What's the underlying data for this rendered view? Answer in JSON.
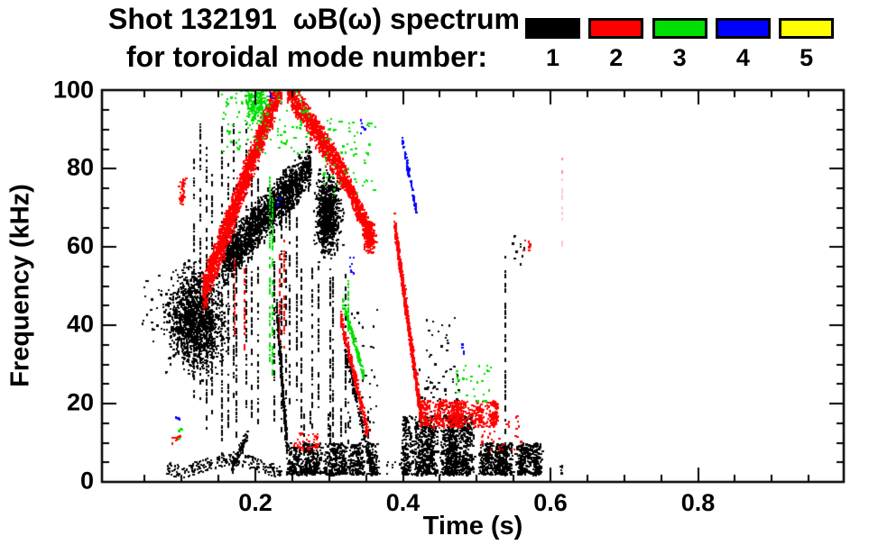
{
  "header": {
    "title_line1": "Shot 132191  ωB(ω) spectrum",
    "title_line2": "for toroidal mode number:"
  },
  "legend": {
    "modes": [
      {
        "label": "1",
        "color": "#000000"
      },
      {
        "label": "2",
        "color": "#ff0000"
      },
      {
        "label": "3",
        "color": "#00e000"
      },
      {
        "label": "4",
        "color": "#0000ff"
      },
      {
        "label": "5",
        "color": "#ffff00"
      }
    ]
  },
  "chart_data": {
    "type": "scatter",
    "title": "Shot 132191 ωB(ω) spectrum for toroidal mode number: 1 2 3 4 5",
    "xlabel": "Time (s)",
    "ylabel": "Frequency (kHz)",
    "xlim": [
      0,
      1.0
    ],
    "ylim": [
      0,
      100
    ],
    "xticks": [
      {
        "t": 0.2,
        "label": "0.2"
      },
      {
        "t": 0.4,
        "label": "0.4"
      },
      {
        "t": 0.6,
        "label": "0.6"
      },
      {
        "t": 0.8,
        "label": "0.8"
      }
    ],
    "yticks": [
      {
        "f": 0,
        "label": "0"
      },
      {
        "f": 20,
        "label": "20"
      },
      {
        "f": 40,
        "label": "40"
      },
      {
        "f": 60,
        "label": "60"
      },
      {
        "f": 80,
        "label": "80"
      },
      {
        "f": 100,
        "label": "100"
      }
    ],
    "x_minor_step": 0.05,
    "y_minor_step": 5,
    "grid": false,
    "legend_position": "top-right",
    "series": [
      {
        "name": "n=1",
        "color": "#000000",
        "clusters": [
          {
            "shape": "blob",
            "t": [
              0.075,
              0.162
            ],
            "f": [
              27,
              55
            ],
            "n": 1400
          },
          {
            "shape": "dots",
            "t": [
              0.045,
              0.078
            ],
            "f": [
              36,
              54
            ],
            "n": 20
          },
          {
            "shape": "vstreaks",
            "t": [
              0.115,
              0.205
            ],
            "f": [
              10,
              93
            ],
            "k": 11
          },
          {
            "shape": "vstreaks",
            "t": [
              0.222,
              0.258
            ],
            "f": [
              12,
              82
            ],
            "k": 5
          },
          {
            "shape": "diag",
            "t": [
              0.155,
              0.275
            ],
            "f": [
              56,
              81
            ],
            "th": 11,
            "n": 1700
          },
          {
            "shape": "blob",
            "t": [
              0.278,
              0.317
            ],
            "f": [
              57,
              80
            ],
            "n": 900
          },
          {
            "shape": "hline",
            "t": [
              0.08,
              0.235
            ],
            "f": [
              2,
              7
            ],
            "n": 260
          },
          {
            "shape": "diag",
            "t": [
              0.166,
              0.19
            ],
            "f": [
              3,
              13
            ],
            "th": 3,
            "n": 90
          },
          {
            "shape": "diag",
            "t": [
              0.228,
              0.242
            ],
            "f": [
              45,
              10
            ],
            "th": 6,
            "n": 320
          },
          {
            "shape": "hband",
            "t": [
              0.24,
              0.365
            ],
            "f": [
              2,
              10
            ],
            "bias": 1.4,
            "n": 850
          },
          {
            "shape": "vstreaks",
            "t": [
              0.25,
              0.36
            ],
            "f": [
              9,
              19
            ],
            "k": 6
          },
          {
            "shape": "dots",
            "t": [
              0.345,
              0.398
            ],
            "f": [
              2,
              6
            ],
            "n": 16
          },
          {
            "shape": "hband",
            "t": [
              0.398,
              0.5
            ],
            "f": [
              2,
              17
            ],
            "bias": 1.3,
            "n": 1400
          },
          {
            "shape": "hband",
            "t": [
              0.5,
              0.588
            ],
            "f": [
              2,
              10
            ],
            "bias": 1.2,
            "n": 800
          },
          {
            "shape": "dots",
            "t": [
              0.413,
              0.475
            ],
            "f": [
              17,
              30
            ],
            "n": 45
          },
          {
            "shape": "dots",
            "t": [
              0.43,
              0.47
            ],
            "f": [
              30,
              45
            ],
            "n": 18
          },
          {
            "shape": "vstreaks",
            "t": [
              0.538,
              0.545
            ],
            "f": [
              5,
              66
            ],
            "k": 1
          },
          {
            "shape": "dots",
            "t": [
              0.548,
              0.565
            ],
            "f": [
              55,
              65
            ],
            "n": 10
          },
          {
            "shape": "dots",
            "t": [
              0.603,
              0.618
            ],
            "f": [
              2,
              5
            ],
            "n": 6
          },
          {
            "shape": "vstreaks",
            "t": [
              0.26,
              0.325
            ],
            "f": [
              8,
              58
            ],
            "k": 6
          },
          {
            "shape": "dots",
            "t": [
              0.325,
              0.365
            ],
            "f": [
              8,
              45
            ],
            "n": 36
          },
          {
            "shape": "diag",
            "t": [
              0.32,
              0.358
            ],
            "f": [
              35,
              3
            ],
            "th": 4,
            "n": 160
          },
          {
            "shape": "dots",
            "t": [
              0.1,
              0.15
            ],
            "f": [
              45,
              57
            ],
            "n": 60
          }
        ]
      },
      {
        "name": "n=2",
        "color": "#ff0000",
        "clusters": [
          {
            "shape": "diag",
            "t": [
              0.128,
              0.235
            ],
            "f": [
              48,
              103
            ],
            "th": 9,
            "n": 2000
          },
          {
            "shape": "blob",
            "t": [
              0.096,
              0.106
            ],
            "f": [
              71,
              78
            ],
            "n": 40
          },
          {
            "shape": "diag",
            "t": [
              0.243,
              0.318
            ],
            "f": [
              101,
              79
            ],
            "th": 7,
            "n": 900
          },
          {
            "shape": "diag",
            "t": [
              0.318,
              0.358
            ],
            "f": [
              79,
              62
            ],
            "th": 6,
            "n": 480
          },
          {
            "shape": "blob",
            "t": [
              0.344,
              0.364
            ],
            "f": [
              58,
              68
            ],
            "n": 180
          },
          {
            "shape": "diag",
            "t": [
              0.315,
              0.352
            ],
            "f": [
              42,
              13
            ],
            "th": 4,
            "n": 260
          },
          {
            "shape": "vstreaks",
            "t": [
              0.23,
              0.244
            ],
            "f": [
              33,
              62
            ],
            "k": 2
          },
          {
            "shape": "dots",
            "t": [
              0.252,
              0.285
            ],
            "f": [
              8,
              13
            ],
            "n": 40
          },
          {
            "shape": "diag",
            "t": [
              0.388,
              0.424
            ],
            "f": [
              66,
              17
            ],
            "th": 5,
            "n": 800
          },
          {
            "shape": "hband",
            "t": [
              0.42,
              0.528
            ],
            "f": [
              14,
              21
            ],
            "bias": 1,
            "n": 600
          },
          {
            "shape": "dots",
            "t": [
              0.5,
              0.56
            ],
            "f": [
              8,
              17
            ],
            "n": 45
          },
          {
            "shape": "dots",
            "t": [
              0.563,
              0.572
            ],
            "f": [
              58,
              62
            ],
            "n": 8
          },
          {
            "shape": "vstreaks",
            "t": [
              0.612,
              0.617
            ],
            "f": [
              78,
              86
            ],
            "k": 1,
            "color": "#ff8f8f"
          },
          {
            "shape": "vstreaks",
            "t": [
              0.6135,
              0.6165
            ],
            "f": [
              57,
              78
            ],
            "k": 1,
            "color": "#ffc9c9"
          },
          {
            "shape": "dots",
            "t": [
              0.086,
              0.098
            ],
            "f": [
              8,
              12
            ],
            "n": 10
          },
          {
            "shape": "vstreaks",
            "t": [
              0.16,
              0.205
            ],
            "f": [
              33,
              58
            ],
            "k": 2
          }
        ]
      },
      {
        "name": "n=3",
        "color": "#00e000",
        "clusters": [
          {
            "shape": "dots",
            "t": [
              0.152,
              0.272
            ],
            "f": [
              84,
              102
            ],
            "n": 130
          },
          {
            "shape": "blob",
            "t": [
              0.183,
              0.218
            ],
            "f": [
              91,
              103
            ],
            "n": 200
          },
          {
            "shape": "vstreaks",
            "t": [
              0.216,
              0.228
            ],
            "f": [
              28,
              80
            ],
            "k": 2
          },
          {
            "shape": "dots",
            "t": [
              0.288,
              0.362
            ],
            "f": [
              72,
              93
            ],
            "n": 70
          },
          {
            "shape": "diag",
            "t": [
              0.318,
              0.347
            ],
            "f": [
              46,
              27
            ],
            "th": 3,
            "n": 130
          },
          {
            "shape": "vstreaks",
            "t": [
              0.322,
              0.328
            ],
            "f": [
              38,
              52
            ],
            "k": 1
          },
          {
            "shape": "dots",
            "t": [
              0.472,
              0.52
            ],
            "f": [
              20,
              30
            ],
            "n": 30
          },
          {
            "shape": "dots",
            "t": [
              0.092,
              0.099
            ],
            "f": [
              11,
              14
            ],
            "n": 5
          }
        ]
      },
      {
        "name": "n=4",
        "color": "#0000ff",
        "clusters": [
          {
            "shape": "diag",
            "t": [
              0.398,
              0.418
            ],
            "f": [
              88,
              69
            ],
            "th": 2,
            "n": 90
          },
          {
            "shape": "dots",
            "t": [
              0.219,
              0.226
            ],
            "f": [
              98,
              103
            ],
            "n": 7
          },
          {
            "shape": "dots",
            "t": [
              0.342,
              0.349
            ],
            "f": [
              89,
              94
            ],
            "n": 6
          },
          {
            "shape": "dots",
            "t": [
              0.327,
              0.334
            ],
            "f": [
              53,
              58
            ],
            "n": 7
          },
          {
            "shape": "dots",
            "t": [
              0.477,
              0.482
            ],
            "f": [
              33,
              36
            ],
            "n": 4
          },
          {
            "shape": "dots",
            "t": [
              0.092,
              0.097
            ],
            "f": [
              16,
              18
            ],
            "n": 4
          },
          {
            "shape": "dots",
            "t": [
              0.227,
              0.233
            ],
            "f": [
              70,
              73
            ],
            "n": 4
          }
        ]
      },
      {
        "name": "n=5",
        "color": "#ffff00",
        "clusters": []
      }
    ]
  }
}
